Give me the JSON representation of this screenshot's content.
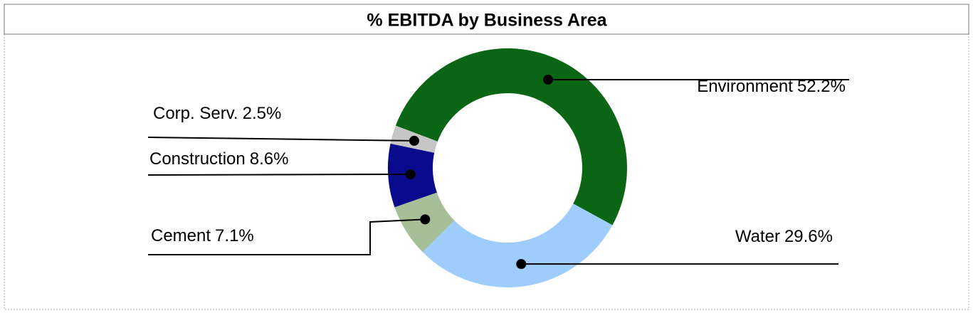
{
  "chart_data": {
    "type": "donut",
    "title": "% EBITDA by Business Area",
    "categories": [
      "Environment",
      "Water",
      "Cement",
      "Construction",
      "Corp. Serv."
    ],
    "values": [
      52.2,
      29.6,
      7.1,
      8.6,
      2.5
    ],
    "value_labels": [
      "52.2%",
      "29.6%",
      "7.1%",
      "8.6%",
      "2.5%"
    ],
    "colors": [
      "#0a6614",
      "#9fcdfb",
      "#a6bf98",
      "#0a0a8c",
      "#c6c6c6"
    ]
  }
}
